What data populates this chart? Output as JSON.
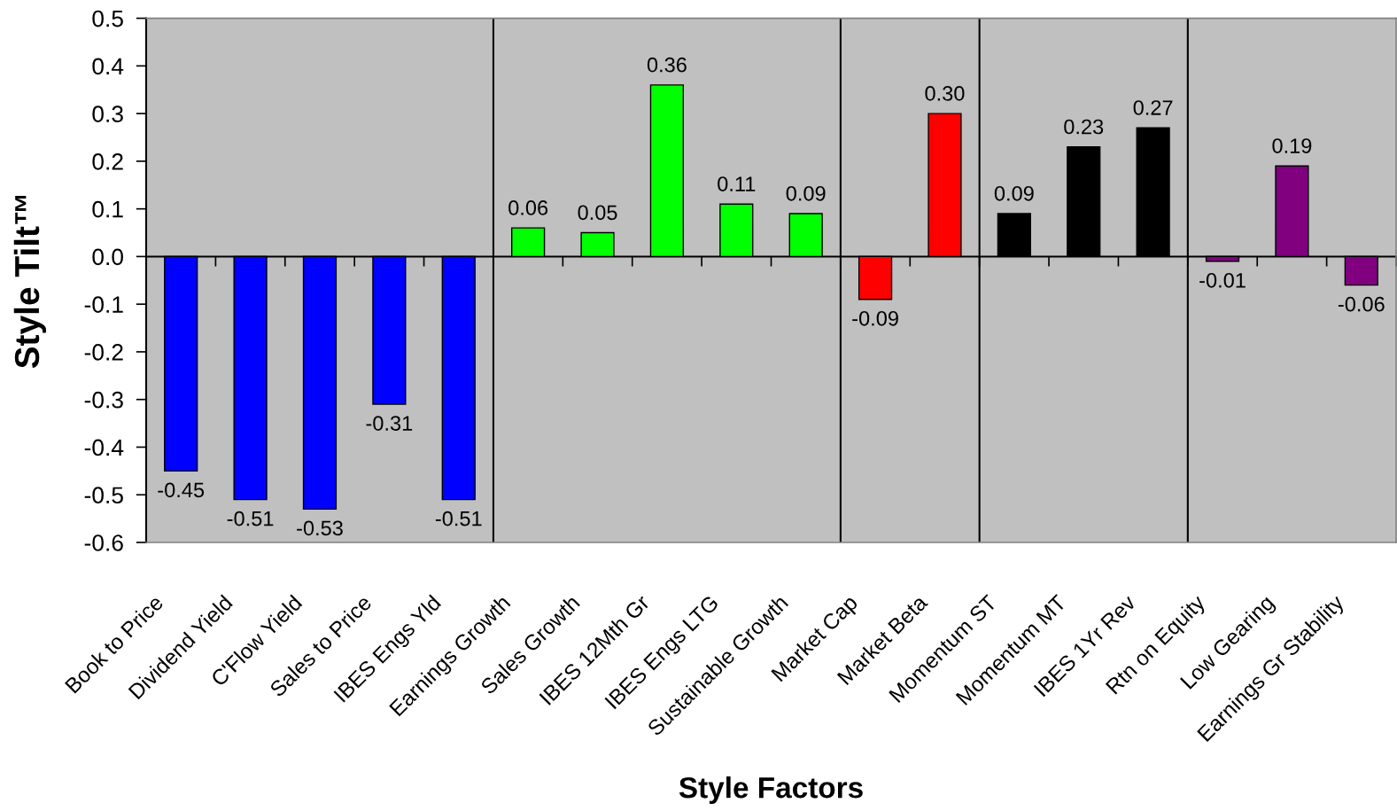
{
  "chart_data": {
    "type": "bar",
    "xlabel": "Style Factors",
    "ylabel": "Style Tilt™",
    "categories": [
      "Book to Price",
      "Dividend Yield",
      "C'Flow Yield",
      "Sales to Price",
      "IBES Engs Yld",
      "Earnings Growth",
      "Sales Growth",
      "IBES 12Mth Gr",
      "IBES Engs LTG",
      "Sustainable Growth",
      "Market Cap",
      "Market Beta",
      "Momentum ST",
      "Momentum MT",
      "IBES 1Yr Rev",
      "Rtn on Equity",
      "Low Gearing",
      "Earnings Gr Stability"
    ],
    "values": [
      -0.45,
      -0.51,
      -0.53,
      -0.31,
      -0.51,
      0.06,
      0.05,
      0.36,
      0.11,
      0.09,
      -0.09,
      0.3,
      0.09,
      0.23,
      0.27,
      -0.01,
      0.19,
      -0.06
    ],
    "value_labels": [
      "-0.45",
      "-0.51",
      "-0.53",
      "-0.31",
      "-0.51",
      "0.06",
      "0.05",
      "0.36",
      "0.11",
      "0.09",
      "-0.09",
      "0.30",
      "0.09",
      "0.23",
      "0.27",
      "-0.01",
      "0.19",
      "-0.06"
    ],
    "colors": [
      "#0000ff",
      "#0000ff",
      "#0000ff",
      "#0000ff",
      "#0000ff",
      "#00ff00",
      "#00ff00",
      "#00ff00",
      "#00ff00",
      "#00ff00",
      "#ff0000",
      "#ff0000",
      "#000000",
      "#000000",
      "#000000",
      "#800080",
      "#800080",
      "#800080"
    ],
    "ylim": [
      -0.6,
      0.5
    ],
    "yticks": [
      -0.6,
      -0.5,
      -0.4,
      -0.3,
      -0.2,
      -0.1,
      {
        "value": 0,
        "label": "0.0"
      },
      0.1,
      0.2,
      0.3,
      0.4,
      0.5
    ]
  }
}
